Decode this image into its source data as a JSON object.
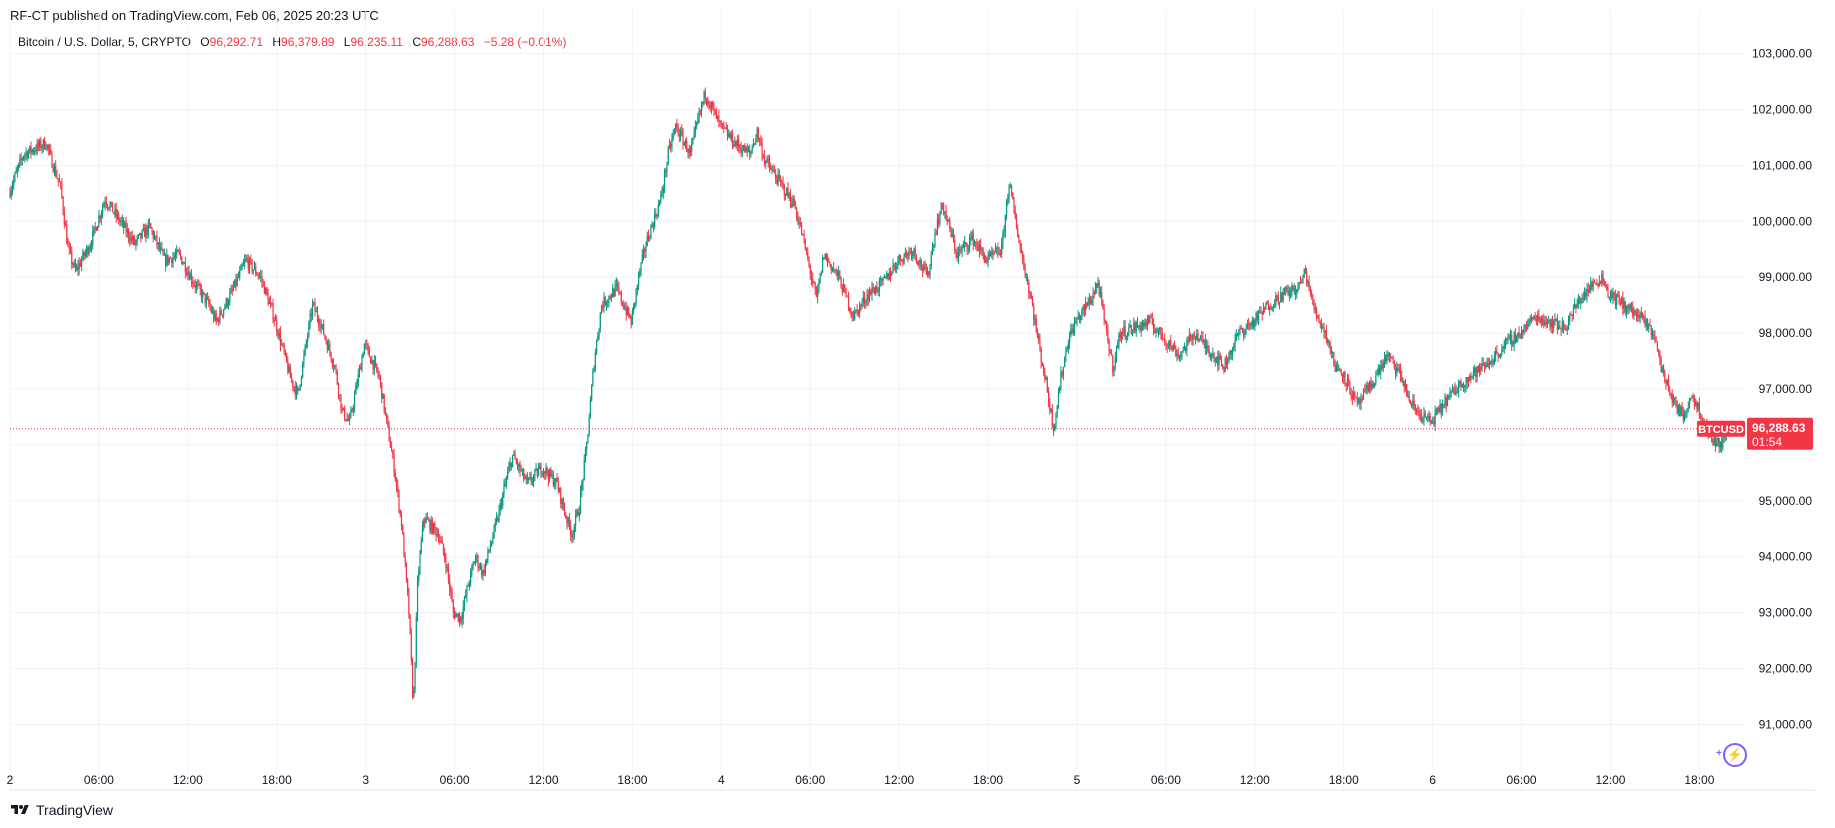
{
  "header": {
    "published": "RF-CT published on TradingView.com, Feb 06, 2025 20:23 UTC"
  },
  "legend": {
    "symbol": "Bitcoin / U.S. Dollar, 5, CRYPTO",
    "o_label": "O",
    "o_value": "96,292.71",
    "h_label": "H",
    "h_value": "96,379.89",
    "l_label": "L",
    "l_value": "96,235.11",
    "c_label": "C",
    "c_value": "96,288.63",
    "change": "−5.28 (−0.01%)"
  },
  "price_tag": {
    "symbol": "BTCUSD",
    "price": "96,288.63",
    "countdown": "01:54"
  },
  "footer": {
    "brand": "TradingView"
  },
  "colors": {
    "up": "#089981",
    "down": "#f23645",
    "grid": "#f0f3fa",
    "axis_text": "#131722",
    "last_price": "#f23645",
    "accent": "#7b61ff"
  },
  "icons": {
    "logo": "tradingview-logo-icon",
    "bolt": "lightning-icon"
  },
  "chart_data": {
    "type": "candlestick",
    "ylim": [
      90400,
      103600
    ],
    "y_ticks": [
      "103,000.00",
      "102,000.00",
      "101,000.00",
      "100,000.00",
      "99,000.00",
      "98,000.00",
      "97,000.00",
      "96,000.00",
      "95,000.00",
      "94,000.00",
      "93,000.00",
      "92,000.00",
      "91,000.00"
    ],
    "y_tick_values": [
      103000,
      102000,
      101000,
      100000,
      99000,
      98000,
      97000,
      96000,
      95000,
      94000,
      93000,
      92000,
      91000
    ],
    "x_tick_labels": [
      "2",
      "06:00",
      "12:00",
      "18:00",
      "3",
      "06:00",
      "12:00",
      "18:00",
      "4",
      "06:00",
      "12:00",
      "18:00",
      "5",
      "06:00",
      "12:00",
      "18:00",
      "6",
      "06:00",
      "12:00",
      "18:00"
    ],
    "x_tick_hours": [
      0,
      6,
      12,
      18,
      24,
      30,
      36,
      42,
      48,
      54,
      60,
      66,
      72,
      78,
      84,
      90,
      96,
      102,
      108,
      114
    ],
    "hours_range": [
      0,
      116.2
    ],
    "last_price": 96288.63,
    "path": [
      [
        0,
        100500
      ],
      [
        1,
        101200
      ],
      [
        2.5,
        101400
      ],
      [
        3.5,
        100600
      ],
      [
        4,
        99500
      ],
      [
        4.5,
        99100
      ],
      [
        5.5,
        99600
      ],
      [
        6.5,
        100400
      ],
      [
        7.5,
        100000
      ],
      [
        8.5,
        99600
      ],
      [
        9.5,
        99900
      ],
      [
        10.5,
        99300
      ],
      [
        11.5,
        99400
      ],
      [
        12.5,
        98900
      ],
      [
        13.5,
        98500
      ],
      [
        14,
        98200
      ],
      [
        15,
        98700
      ],
      [
        16,
        99300
      ],
      [
        17,
        99000
      ],
      [
        17.5,
        98600
      ],
      [
        18,
        98200
      ],
      [
        19,
        97200
      ],
      [
        19.5,
        96900
      ],
      [
        20,
        97700
      ],
      [
        20.5,
        98500
      ],
      [
        21,
        98200
      ],
      [
        22,
        97400
      ],
      [
        22.5,
        96600
      ],
      [
        23,
        96400
      ],
      [
        23.5,
        97100
      ],
      [
        24,
        97800
      ],
      [
        25,
        97200
      ],
      [
        25.5,
        96400
      ],
      [
        26,
        95600
      ],
      [
        26.5,
        94600
      ],
      [
        27,
        93000
      ],
      [
        27.3,
        91300
      ],
      [
        27.6,
        93600
      ],
      [
        28,
        94700
      ],
      [
        29,
        94400
      ],
      [
        29.5,
        93900
      ],
      [
        30,
        93000
      ],
      [
        30.5,
        92900
      ],
      [
        31,
        93500
      ],
      [
        31.5,
        94000
      ],
      [
        32,
        93700
      ],
      [
        32.5,
        94200
      ],
      [
        33,
        94700
      ],
      [
        33.5,
        95300
      ],
      [
        34,
        95800
      ],
      [
        35,
        95300
      ],
      [
        36,
        95600
      ],
      [
        37,
        95300
      ],
      [
        37.5,
        94800
      ],
      [
        38,
        94400
      ],
      [
        38.5,
        94900
      ],
      [
        39,
        96000
      ],
      [
        39.5,
        97500
      ],
      [
        40,
        98500
      ],
      [
        41,
        98800
      ],
      [
        42,
        98200
      ],
      [
        42.5,
        99000
      ],
      [
        43,
        99600
      ],
      [
        44,
        100400
      ],
      [
        44.5,
        101200
      ],
      [
        45,
        101700
      ],
      [
        46,
        101200
      ],
      [
        46.5,
        101800
      ],
      [
        47,
        102300
      ],
      [
        48,
        101700
      ],
      [
        49,
        101400
      ],
      [
        50,
        101200
      ],
      [
        50.5,
        101600
      ],
      [
        51,
        101100
      ],
      [
        52,
        100700
      ],
      [
        53,
        100300
      ],
      [
        53.5,
        99800
      ],
      [
        54,
        99200
      ],
      [
        54.5,
        98600
      ],
      [
        55,
        99400
      ],
      [
        56,
        99000
      ],
      [
        57,
        98300
      ],
      [
        58,
        98700
      ],
      [
        59,
        98900
      ],
      [
        60,
        99300
      ],
      [
        61,
        99500
      ],
      [
        62,
        99000
      ],
      [
        62.5,
        99800
      ],
      [
        63,
        100300
      ],
      [
        64,
        99400
      ],
      [
        65,
        99700
      ],
      [
        66,
        99300
      ],
      [
        67,
        99500
      ],
      [
        67.5,
        100700
      ],
      [
        68,
        99900
      ],
      [
        68.5,
        99200
      ],
      [
        69,
        98600
      ],
      [
        69.5,
        97800
      ],
      [
        70,
        97100
      ],
      [
        70.5,
        96300
      ],
      [
        71,
        97200
      ],
      [
        71.5,
        97900
      ],
      [
        72,
        98200
      ],
      [
        73,
        98600
      ],
      [
        73.5,
        98900
      ],
      [
        74,
        98100
      ],
      [
        74.5,
        97400
      ],
      [
        75,
        98000
      ],
      [
        76,
        98100
      ],
      [
        77,
        98200
      ],
      [
        78,
        97900
      ],
      [
        79,
        97600
      ],
      [
        80,
        98000
      ],
      [
        81,
        97700
      ],
      [
        82,
        97400
      ],
      [
        83,
        98000
      ],
      [
        84,
        98200
      ],
      [
        85,
        98500
      ],
      [
        86,
        98700
      ],
      [
        87,
        98800
      ],
      [
        87.5,
        99100
      ],
      [
        88,
        98500
      ],
      [
        89,
        97900
      ],
      [
        89.5,
        97400
      ],
      [
        90,
        97300
      ],
      [
        91,
        96700
      ],
      [
        92,
        97100
      ],
      [
        93,
        97600
      ],
      [
        94,
        97200
      ],
      [
        94.5,
        96800
      ],
      [
        95,
        96600
      ],
      [
        96,
        96400
      ],
      [
        97,
        96800
      ],
      [
        98,
        97100
      ],
      [
        99,
        97300
      ],
      [
        100,
        97500
      ],
      [
        101,
        97800
      ],
      [
        102,
        98000
      ],
      [
        103,
        98300
      ],
      [
        104,
        98200
      ],
      [
        105,
        98100
      ],
      [
        106,
        98600
      ],
      [
        107,
        98900
      ],
      [
        107.5,
        99000
      ],
      [
        108,
        98700
      ],
      [
        109,
        98500
      ],
      [
        110,
        98300
      ],
      [
        111,
        98000
      ],
      [
        111.5,
        97400
      ],
      [
        112,
        97000
      ],
      [
        112.5,
        96700
      ],
      [
        113,
        96500
      ],
      [
        113.5,
        96900
      ],
      [
        114,
        96700
      ],
      [
        114.5,
        96300
      ],
      [
        115,
        96100
      ],
      [
        115.5,
        96000
      ],
      [
        116,
        96288
      ]
    ]
  }
}
